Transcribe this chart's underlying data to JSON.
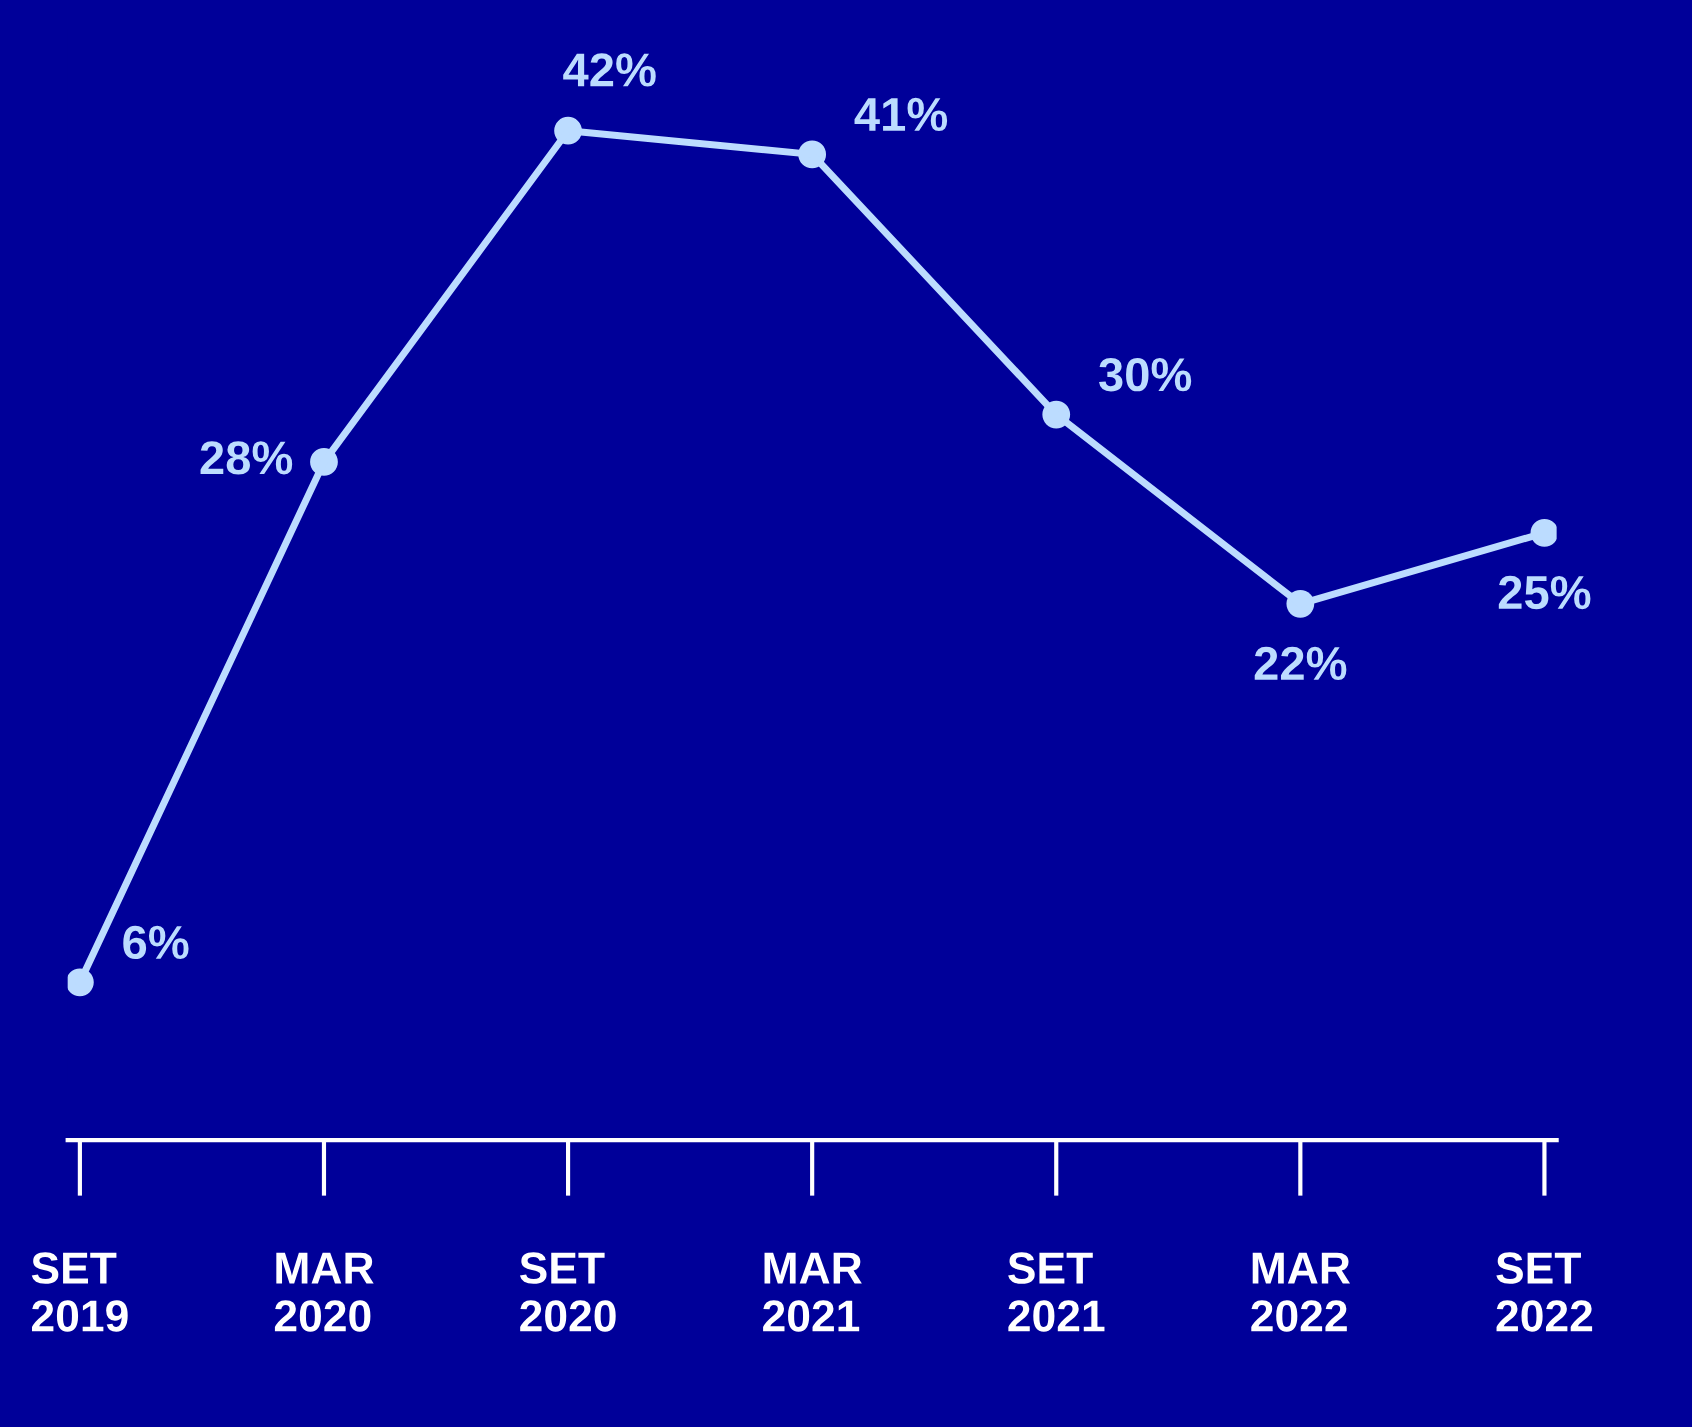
{
  "chart_data": {
    "type": "line",
    "categories": [
      "SET\n2019",
      "MAR\n2020",
      "SET\n2020",
      "MAR\n2021",
      "SET\n2021",
      "MAR\n2022",
      "SET\n2022"
    ],
    "series": [
      {
        "color": "#bcdcff",
        "values": [
          6,
          28,
          42,
          41,
          30,
          22,
          25
        ],
        "value_labels": [
          "6%",
          "28%",
          "42%",
          "41%",
          "30%",
          "22%",
          "25%"
        ]
      }
    ],
    "marker": "circle",
    "line_style": "solid",
    "grid": false,
    "legend": false
  }
}
